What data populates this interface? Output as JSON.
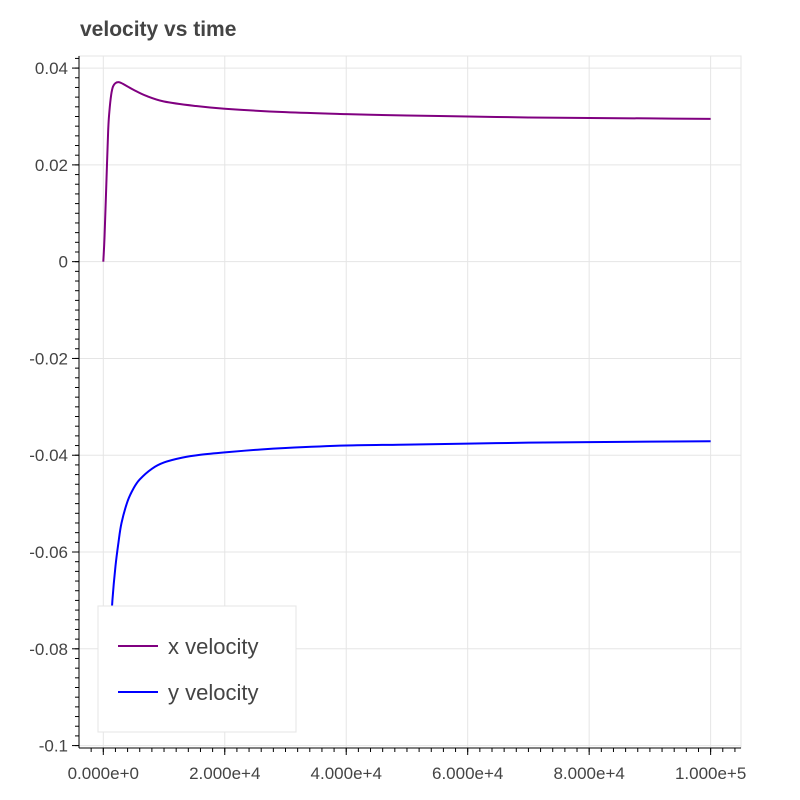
{
  "chart_data": {
    "type": "line",
    "title": "velocity vs time",
    "xlabel": "",
    "ylabel": "",
    "xlim": [
      -4000,
      105000
    ],
    "ylim": [
      -0.1005,
      0.0425
    ],
    "grid": true,
    "legend_position": "bottom-left",
    "x_ticks": [
      0,
      20000,
      40000,
      60000,
      80000,
      100000
    ],
    "x_tick_labels": [
      "0.000e+0",
      "2.000e+4",
      "4.000e+4",
      "6.000e+4",
      "8.000e+4",
      "1.000e+5"
    ],
    "y_ticks": [
      0.04,
      0.02,
      0,
      -0.02,
      -0.04,
      -0.06,
      -0.08,
      -0.1
    ],
    "y_tick_labels": [
      "0.04",
      "0.02",
      "0",
      "-0.02",
      "-0.04",
      "-0.06",
      "-0.08",
      "-0.1"
    ],
    "series": [
      {
        "name": "x velocity",
        "color": "#800080",
        "points": [
          [
            0,
            0
          ],
          [
            200,
            0.005
          ],
          [
            500,
            0.016
          ],
          [
            800,
            0.027
          ],
          [
            1000,
            0.031
          ],
          [
            1300,
            0.0345
          ],
          [
            1600,
            0.0362
          ],
          [
            2000,
            0.0369
          ],
          [
            2500,
            0.0371
          ],
          [
            3000,
            0.0369
          ],
          [
            4000,
            0.0362
          ],
          [
            5000,
            0.0355
          ],
          [
            7000,
            0.0343
          ],
          [
            10000,
            0.0331
          ],
          [
            15000,
            0.0322
          ],
          [
            20000,
            0.0316
          ],
          [
            30000,
            0.0309
          ],
          [
            40000,
            0.0305
          ],
          [
            50000,
            0.0302
          ],
          [
            60000,
            0.03
          ],
          [
            70000,
            0.0298
          ],
          [
            80000,
            0.0297
          ],
          [
            90000,
            0.0296
          ],
          [
            100000,
            0.0295
          ]
        ]
      },
      {
        "name": "y velocity",
        "color": "#0000ff",
        "points": [
          [
            0,
            -0.096
          ],
          [
            500,
            -0.09
          ],
          [
            1000,
            -0.08
          ],
          [
            1500,
            -0.07
          ],
          [
            2000,
            -0.063
          ],
          [
            2500,
            -0.058
          ],
          [
            3000,
            -0.054
          ],
          [
            4000,
            -0.0495
          ],
          [
            5000,
            -0.0468
          ],
          [
            6000,
            -0.045
          ],
          [
            8000,
            -0.0428
          ],
          [
            10000,
            -0.0415
          ],
          [
            13000,
            -0.0405
          ],
          [
            16000,
            -0.0399
          ],
          [
            20000,
            -0.0394
          ],
          [
            25000,
            -0.0389
          ],
          [
            30000,
            -0.0385
          ],
          [
            40000,
            -0.038
          ],
          [
            50000,
            -0.0378
          ],
          [
            60000,
            -0.0376
          ],
          [
            70000,
            -0.0374
          ],
          [
            80000,
            -0.0373
          ],
          [
            90000,
            -0.0372
          ],
          [
            100000,
            -0.0371
          ]
        ]
      }
    ]
  }
}
